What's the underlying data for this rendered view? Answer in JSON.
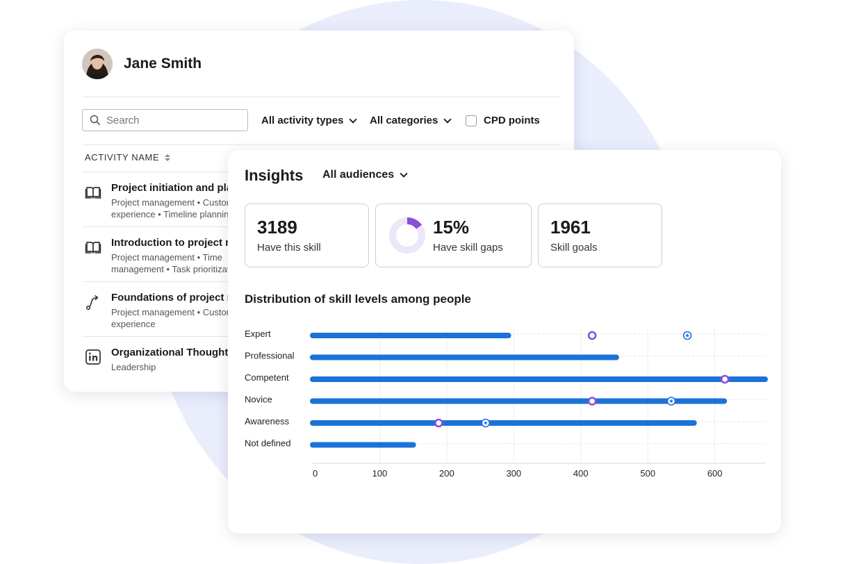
{
  "profile": {
    "name": "Jane Smith"
  },
  "filters": {
    "search_placeholder": "Search",
    "activity_types": "All activity types",
    "categories": "All categories",
    "cpd_points": "CPD points"
  },
  "table": {
    "column_header": "ACTIVITY NAME",
    "activities": [
      {
        "title": "Project initiation and pla",
        "tags": "Project management • Custom experience • Timeline planning",
        "icon": "book-icon"
      },
      {
        "title": "Introduction to project m",
        "tags": "Project management • Time management • Task prioritizat",
        "icon": "book-icon"
      },
      {
        "title": "Foundations of project m",
        "tags": "Project management • Custom experience",
        "icon": "path-icon"
      },
      {
        "title": "Organizational Thought",
        "tags": "Leadership",
        "icon": "linkedin-icon"
      }
    ]
  },
  "insights": {
    "title": "Insights",
    "audience": "All audiences",
    "stats": [
      {
        "value": "3189",
        "label": "Have this skill"
      },
      {
        "value": "15%",
        "label": "Have skill gaps",
        "percent": 15
      },
      {
        "value": "1961",
        "label": "Skill goals"
      }
    ]
  },
  "colors": {
    "bar": "#1b72d9",
    "gap_marker": "#8a4fd8",
    "goal_marker": "#1b72d9",
    "donut_fill": "#8a4fd8",
    "donut_track": "#ece6fb"
  },
  "chart_data": {
    "type": "bar",
    "orientation": "horizontal",
    "title": "Distribution of skill levels among people",
    "categories": [
      "Expert",
      "Professional",
      "Competent",
      "Novice",
      "Awareness",
      "Not defined"
    ],
    "values": [
      292,
      453,
      675,
      614,
      569,
      150
    ],
    "markers": [
      {
        "category": "Expert",
        "value": 417,
        "kind": "circle"
      },
      {
        "category": "Expert",
        "value": 559,
        "kind": "star"
      },
      {
        "category": "Competent",
        "value": 615,
        "kind": "circle"
      },
      {
        "category": "Novice",
        "value": 417,
        "kind": "circle"
      },
      {
        "category": "Novice",
        "value": 535,
        "kind": "star"
      },
      {
        "category": "Awareness",
        "value": 188,
        "kind": "circle"
      },
      {
        "category": "Awareness",
        "value": 258,
        "kind": "star"
      }
    ],
    "xlim": [
      0,
      675
    ],
    "xticks": [
      0,
      100,
      200,
      300,
      400,
      500,
      600
    ],
    "grid": true
  }
}
